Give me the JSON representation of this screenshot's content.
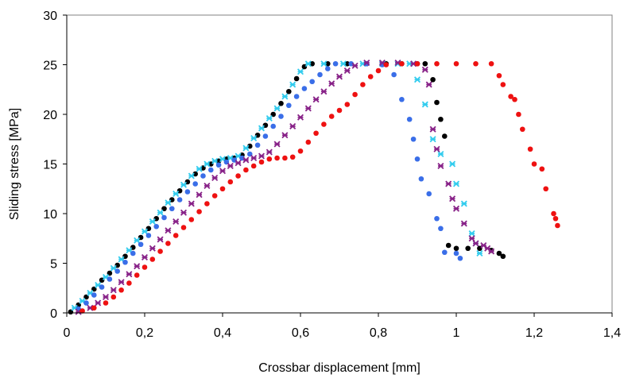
{
  "chart_data": {
    "type": "scatter",
    "title": "",
    "xlabel": "Crossbar displacement [mm]",
    "ylabel": "Sliding stress [MPa]",
    "xlim": [
      0,
      1.4
    ],
    "ylim": [
      0,
      30
    ],
    "x_ticks": [
      0,
      0.2,
      0.4,
      0.6,
      0.8,
      1.0,
      1.2,
      1.4
    ],
    "x_tick_labels": [
      "0",
      "0,2",
      "0,4",
      "0,6",
      "0,8",
      "1",
      "1,2",
      "1,4"
    ],
    "y_ticks": [
      0,
      5,
      10,
      15,
      20,
      25,
      30
    ],
    "y_tick_labels": [
      "0",
      "5",
      "10",
      "15",
      "20",
      "25",
      "30"
    ],
    "grid": false,
    "legend": "none",
    "series": [
      {
        "color": "#000000",
        "marker": "circle",
        "points": [
          [
            0.01,
            0.1
          ],
          [
            0.03,
            0.8
          ],
          [
            0.05,
            1.6
          ],
          [
            0.07,
            2.4
          ],
          [
            0.09,
            3.3
          ],
          [
            0.11,
            4.0
          ],
          [
            0.13,
            4.8
          ],
          [
            0.15,
            5.7
          ],
          [
            0.17,
            6.6
          ],
          [
            0.19,
            7.6
          ],
          [
            0.21,
            8.5
          ],
          [
            0.23,
            9.5
          ],
          [
            0.25,
            10.5
          ],
          [
            0.27,
            11.4
          ],
          [
            0.29,
            12.3
          ],
          [
            0.31,
            13.2
          ],
          [
            0.33,
            14.0
          ],
          [
            0.35,
            14.6
          ],
          [
            0.37,
            15.0
          ],
          [
            0.39,
            15.3
          ],
          [
            0.41,
            15.5
          ],
          [
            0.43,
            15.6
          ],
          [
            0.45,
            15.9
          ],
          [
            0.47,
            16.8
          ],
          [
            0.49,
            17.9
          ],
          [
            0.51,
            18.9
          ],
          [
            0.53,
            20.0
          ],
          [
            0.55,
            21.1
          ],
          [
            0.57,
            22.3
          ],
          [
            0.59,
            23.6
          ],
          [
            0.61,
            24.8
          ],
          [
            0.63,
            25.1
          ],
          [
            0.67,
            25.1
          ],
          [
            0.72,
            25.1
          ],
          [
            0.77,
            25.1
          ],
          [
            0.82,
            25.1
          ],
          [
            0.86,
            25.1
          ],
          [
            0.9,
            25.1
          ],
          [
            0.92,
            25.1
          ],
          [
            0.94,
            23.5
          ],
          [
            0.95,
            21.2
          ],
          [
            0.96,
            19.5
          ],
          [
            0.97,
            17.8
          ],
          [
            0.98,
            6.8
          ],
          [
            1.0,
            6.5
          ],
          [
            1.03,
            6.5
          ],
          [
            1.06,
            6.5
          ],
          [
            1.09,
            6.3
          ],
          [
            1.11,
            6.0
          ],
          [
            1.12,
            5.7
          ]
        ]
      },
      {
        "color": "#33ccee",
        "marker": "x",
        "points": [
          [
            0.02,
            0.5
          ],
          [
            0.04,
            1.2
          ],
          [
            0.06,
            2.0
          ],
          [
            0.08,
            2.8
          ],
          [
            0.1,
            3.6
          ],
          [
            0.12,
            4.5
          ],
          [
            0.14,
            5.4
          ],
          [
            0.16,
            6.3
          ],
          [
            0.18,
            7.3
          ],
          [
            0.2,
            8.2
          ],
          [
            0.22,
            9.2
          ],
          [
            0.24,
            10.1
          ],
          [
            0.26,
            11.1
          ],
          [
            0.28,
            12.0
          ],
          [
            0.3,
            12.9
          ],
          [
            0.32,
            13.8
          ],
          [
            0.34,
            14.5
          ],
          [
            0.36,
            15.0
          ],
          [
            0.38,
            15.3
          ],
          [
            0.4,
            15.5
          ],
          [
            0.42,
            15.6
          ],
          [
            0.44,
            15.8
          ],
          [
            0.46,
            16.6
          ],
          [
            0.48,
            17.6
          ],
          [
            0.5,
            18.6
          ],
          [
            0.52,
            19.6
          ],
          [
            0.54,
            20.6
          ],
          [
            0.56,
            21.8
          ],
          [
            0.58,
            23.0
          ],
          [
            0.6,
            24.3
          ],
          [
            0.62,
            25.1
          ],
          [
            0.66,
            25.1
          ],
          [
            0.71,
            25.1
          ],
          [
            0.76,
            25.1
          ],
          [
            0.81,
            25.1
          ],
          [
            0.85,
            25.1
          ],
          [
            0.88,
            25.1
          ],
          [
            0.9,
            23.5
          ],
          [
            0.92,
            21.0
          ],
          [
            0.94,
            17.5
          ],
          [
            0.96,
            16.0
          ],
          [
            0.99,
            15.0
          ],
          [
            1.0,
            13.0
          ],
          [
            1.02,
            11.0
          ],
          [
            1.04,
            8.0
          ],
          [
            1.05,
            7.0
          ],
          [
            1.06,
            6.0
          ]
        ]
      },
      {
        "color": "#3a6ee8",
        "marker": "circle",
        "points": [
          [
            0.03,
            0.4
          ],
          [
            0.05,
            1.0
          ],
          [
            0.07,
            1.8
          ],
          [
            0.09,
            2.6
          ],
          [
            0.11,
            3.4
          ],
          [
            0.13,
            4.2
          ],
          [
            0.15,
            5.1
          ],
          [
            0.17,
            6.0
          ],
          [
            0.19,
            6.9
          ],
          [
            0.21,
            7.8
          ],
          [
            0.23,
            8.7
          ],
          [
            0.25,
            9.6
          ],
          [
            0.27,
            10.5
          ],
          [
            0.29,
            11.4
          ],
          [
            0.31,
            12.2
          ],
          [
            0.33,
            13.0
          ],
          [
            0.35,
            13.8
          ],
          [
            0.37,
            14.4
          ],
          [
            0.39,
            14.9
          ],
          [
            0.41,
            15.2
          ],
          [
            0.43,
            15.4
          ],
          [
            0.45,
            15.6
          ],
          [
            0.47,
            16.0
          ],
          [
            0.49,
            16.9
          ],
          [
            0.51,
            17.8
          ],
          [
            0.53,
            18.8
          ],
          [
            0.55,
            19.8
          ],
          [
            0.57,
            20.9
          ],
          [
            0.59,
            21.8
          ],
          [
            0.61,
            22.6
          ],
          [
            0.63,
            23.3
          ],
          [
            0.65,
            24.0
          ],
          [
            0.67,
            24.6
          ],
          [
            0.69,
            25.1
          ],
          [
            0.73,
            25.1
          ],
          [
            0.77,
            25.1
          ],
          [
            0.81,
            25.0
          ],
          [
            0.84,
            24.0
          ],
          [
            0.86,
            21.5
          ],
          [
            0.88,
            19.5
          ],
          [
            0.89,
            17.5
          ],
          [
            0.9,
            15.5
          ],
          [
            0.91,
            13.5
          ],
          [
            0.93,
            12.0
          ],
          [
            0.95,
            9.5
          ],
          [
            0.96,
            8.5
          ],
          [
            0.97,
            6.1
          ],
          [
            1.0,
            6.0
          ],
          [
            1.01,
            5.5
          ]
        ]
      },
      {
        "color": "#882288",
        "marker": "x",
        "points": [
          [
            0.03,
            0.1
          ],
          [
            0.06,
            0.5
          ],
          [
            0.08,
            1.0
          ],
          [
            0.1,
            1.6
          ],
          [
            0.12,
            2.3
          ],
          [
            0.14,
            3.1
          ],
          [
            0.16,
            3.9
          ],
          [
            0.18,
            4.7
          ],
          [
            0.2,
            5.6
          ],
          [
            0.22,
            6.5
          ],
          [
            0.24,
            7.4
          ],
          [
            0.26,
            8.3
          ],
          [
            0.28,
            9.2
          ],
          [
            0.3,
            10.1
          ],
          [
            0.32,
            11.0
          ],
          [
            0.34,
            11.9
          ],
          [
            0.36,
            12.8
          ],
          [
            0.38,
            13.6
          ],
          [
            0.4,
            14.3
          ],
          [
            0.42,
            14.8
          ],
          [
            0.44,
            15.1
          ],
          [
            0.46,
            15.4
          ],
          [
            0.48,
            15.6
          ],
          [
            0.5,
            15.8
          ],
          [
            0.52,
            16.2
          ],
          [
            0.54,
            17.0
          ],
          [
            0.56,
            17.9
          ],
          [
            0.58,
            18.8
          ],
          [
            0.6,
            19.7
          ],
          [
            0.62,
            20.6
          ],
          [
            0.64,
            21.5
          ],
          [
            0.66,
            22.3
          ],
          [
            0.68,
            23.1
          ],
          [
            0.7,
            23.8
          ],
          [
            0.72,
            24.4
          ],
          [
            0.74,
            24.9
          ],
          [
            0.77,
            25.2
          ],
          [
            0.81,
            25.2
          ],
          [
            0.85,
            25.2
          ],
          [
            0.89,
            25.1
          ],
          [
            0.92,
            24.5
          ],
          [
            0.93,
            23.0
          ],
          [
            0.94,
            18.5
          ],
          [
            0.95,
            16.5
          ],
          [
            0.96,
            14.8
          ],
          [
            0.98,
            13.0
          ],
          [
            0.99,
            11.5
          ],
          [
            1.0,
            10.5
          ],
          [
            1.02,
            9.0
          ],
          [
            1.04,
            7.5
          ],
          [
            1.05,
            7.0
          ],
          [
            1.07,
            6.8
          ],
          [
            1.08,
            6.5
          ],
          [
            1.09,
            6.2
          ]
        ]
      },
      {
        "color": "#ee1111",
        "marker": "circle",
        "points": [
          [
            0.04,
            0.2
          ],
          [
            0.07,
            0.5
          ],
          [
            0.1,
            1.0
          ],
          [
            0.12,
            1.6
          ],
          [
            0.14,
            2.3
          ],
          [
            0.16,
            3.0
          ],
          [
            0.18,
            3.8
          ],
          [
            0.2,
            4.6
          ],
          [
            0.22,
            5.4
          ],
          [
            0.24,
            6.2
          ],
          [
            0.26,
            7.0
          ],
          [
            0.28,
            7.8
          ],
          [
            0.3,
            8.6
          ],
          [
            0.32,
            9.4
          ],
          [
            0.34,
            10.2
          ],
          [
            0.36,
            11.0
          ],
          [
            0.38,
            11.8
          ],
          [
            0.4,
            12.5
          ],
          [
            0.42,
            13.2
          ],
          [
            0.44,
            13.8
          ],
          [
            0.46,
            14.4
          ],
          [
            0.48,
            14.8
          ],
          [
            0.5,
            15.2
          ],
          [
            0.52,
            15.5
          ],
          [
            0.54,
            15.6
          ],
          [
            0.56,
            15.6
          ],
          [
            0.58,
            15.7
          ],
          [
            0.6,
            16.3
          ],
          [
            0.62,
            17.2
          ],
          [
            0.64,
            18.1
          ],
          [
            0.66,
            19.0
          ],
          [
            0.68,
            19.8
          ],
          [
            0.7,
            20.4
          ],
          [
            0.72,
            21.0
          ],
          [
            0.74,
            22.0
          ],
          [
            0.76,
            23.0
          ],
          [
            0.78,
            23.8
          ],
          [
            0.8,
            24.4
          ],
          [
            0.82,
            25.0
          ],
          [
            0.86,
            25.1
          ],
          [
            0.9,
            25.1
          ],
          [
            0.95,
            25.1
          ],
          [
            1.0,
            25.1
          ],
          [
            1.05,
            25.1
          ],
          [
            1.09,
            25.1
          ],
          [
            1.11,
            23.9
          ],
          [
            1.12,
            23.0
          ],
          [
            1.14,
            21.8
          ],
          [
            1.15,
            21.5
          ],
          [
            1.16,
            20.0
          ],
          [
            1.17,
            18.5
          ],
          [
            1.19,
            16.5
          ],
          [
            1.2,
            15.0
          ],
          [
            1.22,
            14.5
          ],
          [
            1.23,
            12.5
          ],
          [
            1.25,
            10.0
          ],
          [
            1.255,
            9.5
          ],
          [
            1.26,
            8.8
          ]
        ]
      }
    ]
  }
}
